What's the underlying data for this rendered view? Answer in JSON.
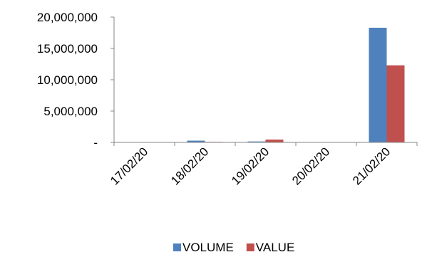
{
  "chart_data": {
    "type": "bar",
    "title": "",
    "xlabel": "",
    "ylabel": "",
    "categories": [
      "17/02/20",
      "18/02/20",
      "19/02/20",
      "20/02/20",
      "21/02/20"
    ],
    "series": [
      {
        "name": "VOLUME",
        "color": "#4F81BD",
        "values": [
          0,
          280000,
          150000,
          0,
          18300000
        ]
      },
      {
        "name": "VALUE",
        "color": "#C0504D",
        "values": [
          0,
          80000,
          450000,
          0,
          12300000
        ]
      }
    ],
    "ylim": [
      0,
      20000000
    ],
    "yticks": [
      0,
      5000000,
      10000000,
      15000000,
      20000000
    ],
    "ytick_labels": [
      "-",
      "5,000,000",
      "10,000,000",
      "15,000,000",
      "20,000,000"
    ],
    "grid": false,
    "legend": "bottom"
  }
}
